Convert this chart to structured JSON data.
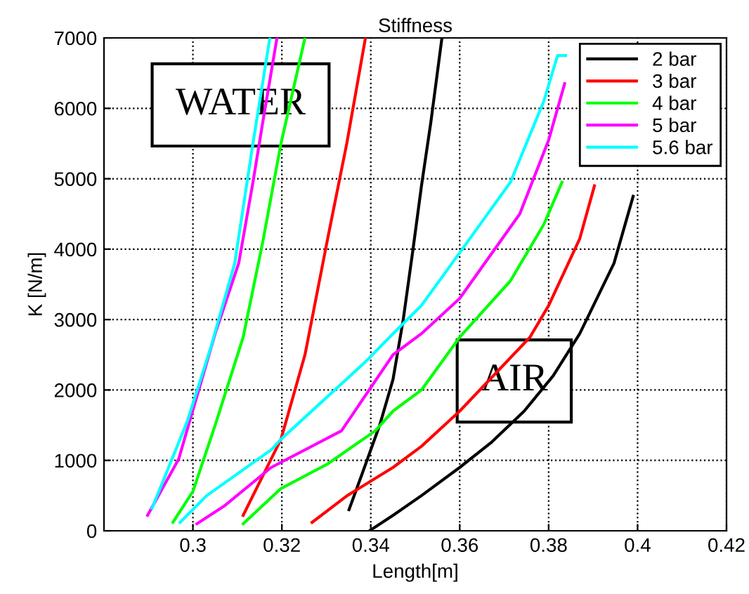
{
  "chart_data": {
    "type": "line",
    "title": "Stiffness",
    "xlabel": "Length[m]",
    "ylabel": "K [N/m]",
    "xlim": [
      0.28,
      0.42
    ],
    "xticks": [
      0.3,
      0.32,
      0.34,
      0.36,
      0.38,
      0.4,
      0.42
    ],
    "ylim": [
      0,
      7000
    ],
    "yticks": [
      0,
      1000,
      2000,
      3000,
      4000,
      5000,
      6000,
      7000
    ],
    "grid": true,
    "legend": "top right",
    "line_style": "solid",
    "marker": "none",
    "annotations": [
      "WATER",
      "AIR"
    ],
    "series": [
      {
        "name": "2 bar",
        "color": "#000000",
        "x": [
          0.3351,
          0.338,
          0.342,
          0.345,
          0.3473,
          0.3495,
          0.3514,
          0.3535,
          0.356
        ],
        "values": [
          300,
          800,
          1500,
          2150,
          3000,
          4000,
          4900,
          5800,
          7000
        ]
      },
      {
        "name": "3 bar",
        "color": "#ff0000",
        "x": [
          0.3113,
          0.3135,
          0.3198,
          0.3252,
          0.3303,
          0.3346,
          0.3388
        ],
        "values": [
          220,
          500,
          1300,
          2500,
          4150,
          5500,
          7000
        ]
      },
      {
        "name": "4 bar",
        "color": "#00ff00",
        "x": [
          0.2955,
          0.3,
          0.305,
          0.3113,
          0.3157,
          0.3198,
          0.3252
        ],
        "values": [
          120,
          560,
          1500,
          2750,
          4100,
          5500,
          7000
        ]
      },
      {
        "name": "5 bar",
        "color": "#ff00ff",
        "x": [
          0.2898,
          0.2968,
          0.305,
          0.3103,
          0.3135,
          0.3157,
          0.3189
        ],
        "values": [
          220,
          1020,
          2800,
          3800,
          4950,
          5800,
          7000
        ]
      },
      {
        "name": "5.6 bar",
        "color": "#00ffff",
        "x": [
          0.2908,
          0.2987,
          0.304,
          0.3094,
          0.3135,
          0.3173
        ],
        "values": [
          320,
          1550,
          2600,
          3800,
          5500,
          7000
        ]
      },
      {
        "color": "#000000",
        "x": [
          0.3397,
          0.345,
          0.3514,
          0.36,
          0.367,
          0.3745,
          0.381,
          0.387,
          0.3947,
          0.399
        ],
        "values": [
          0,
          220,
          500,
          900,
          1250,
          1700,
          2200,
          2800,
          3800,
          4750
        ]
      },
      {
        "color": "#ff0000",
        "x": [
          0.3268,
          0.3347,
          0.345,
          0.3514,
          0.36,
          0.3758,
          0.38,
          0.387,
          0.3903
        ],
        "values": [
          120,
          500,
          900,
          1200,
          1700,
          2750,
          3200,
          4150,
          4900
        ]
      },
      {
        "color": "#00ff00",
        "x": [
          0.3113,
          0.3198,
          0.3303,
          0.341,
          0.345,
          0.3514,
          0.36,
          0.3714,
          0.3789,
          0.383
        ],
        "values": [
          100,
          600,
          950,
          1420,
          1700,
          2000,
          2750,
          3550,
          4350,
          4950
        ]
      },
      {
        "color": "#ff00ff",
        "x": [
          0.3009,
          0.3072,
          0.3176,
          0.3334,
          0.345,
          0.3514,
          0.36,
          0.3735,
          0.38,
          0.3836
        ],
        "values": [
          100,
          360,
          900,
          1420,
          2500,
          2800,
          3300,
          4500,
          5550,
          6350
        ]
      },
      {
        "color": "#00ffff",
        "x": [
          0.2971,
          0.3031,
          0.3176,
          0.3198,
          0.3388,
          0.345,
          0.3514,
          0.36,
          0.3714,
          0.3789,
          0.382,
          0.3838
        ],
        "values": [
          120,
          500,
          1150,
          1300,
          2400,
          2800,
          3200,
          3950,
          4950,
          6100,
          6750,
          6750
        ]
      }
    ]
  }
}
